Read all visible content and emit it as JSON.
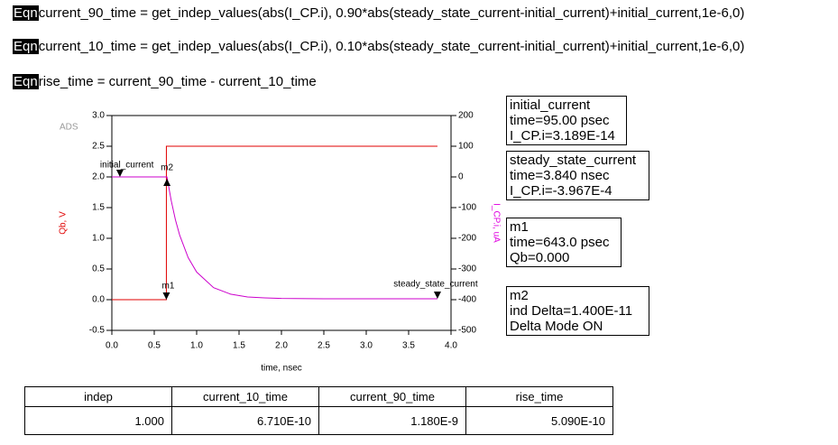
{
  "equations": [
    {
      "tag": "Eqn",
      "text": "current_90_time = get_indep_values(abs(I_CP.i), 0.90*abs(steady_state_current-initial_current)+initial_current,1e-6,0)"
    },
    {
      "tag": "Eqn",
      "text": "current_10_time = get_indep_values(abs(I_CP.i), 0.10*abs(steady_state_current-initial_current)+initial_current,1e-6,0)"
    },
    {
      "tag": "Eqn",
      "text": "rise_time = current_90_time - current_10_time"
    }
  ],
  "chart_data": {
    "type": "line",
    "watermark": "ADS",
    "xlabel": "time, nsec",
    "ylabel": "Qb, V",
    "y2label": "I_CP.i, uA",
    "xlim": [
      0,
      4
    ],
    "ylim": [
      -0.5,
      3
    ],
    "y2lim": [
      -500,
      200
    ],
    "xticks": [
      {
        "value": 0,
        "label": "0.0"
      },
      0.5,
      {
        "value": 1,
        "label": "1.0"
      },
      1.5,
      {
        "value": 2,
        "label": "2.0"
      },
      2.5,
      {
        "value": 3,
        "label": "3.0"
      },
      3.5,
      {
        "value": 4,
        "label": "4.0"
      }
    ],
    "yticks": [
      -0.5,
      {
        "value": 0,
        "label": "0.0"
      },
      0.5,
      {
        "value": 1,
        "label": "1.0"
      },
      1.5,
      {
        "value": 2,
        "label": "2.0"
      },
      2.5,
      {
        "value": 3,
        "label": "3.0"
      }
    ],
    "y2ticks": [
      -500,
      -400,
      -300,
      -200,
      -100,
      0,
      100,
      200
    ],
    "ylabel_color": "#e00000",
    "y2label_color": "#e000e0",
    "series": [
      {
        "color": "#e00000",
        "x": [
          0,
          0.643,
          0.643,
          3.84
        ],
        "values": [
          0,
          0,
          2.5,
          2.5
        ]
      },
      {
        "color": "#cc00cc",
        "axis": "y2",
        "x": [
          0,
          0.65,
          0.7,
          0.75,
          0.8,
          0.9,
          1.0,
          1.2,
          1.4,
          1.6,
          1.8,
          2.0,
          2.5,
          3.0,
          3.84
        ],
        "values": [
          0,
          0,
          -77,
          -140,
          -190,
          -263,
          -310,
          -361,
          -382,
          -391,
          -394,
          -396,
          -397,
          -397,
          -397
        ]
      }
    ],
    "markers": [
      {
        "label": "initial_current",
        "x": 0.095,
        "value": 0,
        "axis": "y2"
      },
      {
        "label": "m2",
        "x": 0.65,
        "value": 0,
        "axis": "y2"
      },
      {
        "label": "m1",
        "x": 0.643,
        "value": 0
      },
      {
        "label": "steady_state_current",
        "x": 3.84,
        "value": -397,
        "axis": "y2"
      }
    ]
  },
  "readouts": [
    [
      "initial_current",
      "time=95.00 psec",
      "I_CP.i=3.189E-14"
    ],
    [
      "steady_state_current",
      "time=3.840 nsec",
      "I_CP.i=-3.967E-4"
    ],
    [
      "m1",
      "time=643.0 psec",
      "Qb=0.000"
    ],
    [
      "m2",
      "ind Delta=1.400E-11",
      "Delta Mode ON"
    ]
  ],
  "table": {
    "header": [
      "indep",
      "current_10_time",
      "current_90_time",
      "rise_time"
    ],
    "rows": [
      [
        "1.000",
        "6.710E-10",
        "1.180E-9",
        "5.090E-10"
      ]
    ]
  }
}
